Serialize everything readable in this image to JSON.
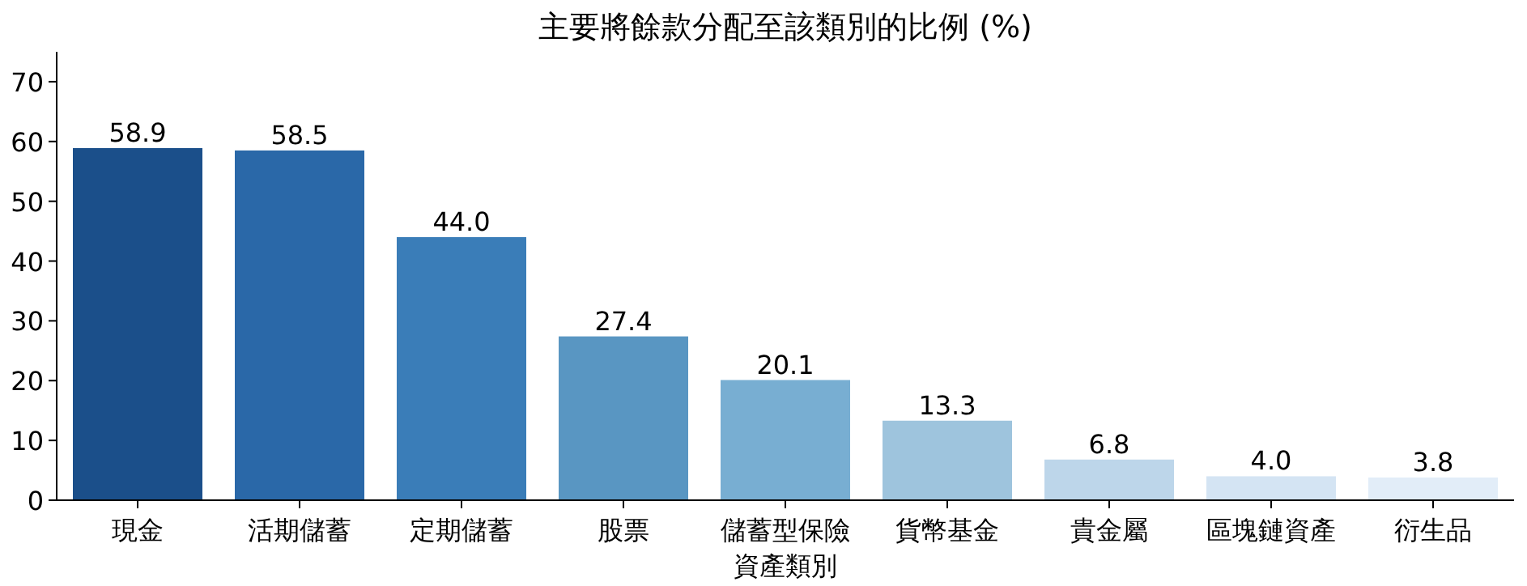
{
  "chart_data": {
    "type": "bar",
    "title": "主要將餘款分配至該類別的比例 (%)",
    "xlabel": "資產類別",
    "categories": [
      "現金",
      "活期儲蓄",
      "定期儲蓄",
      "股票",
      "儲蓄型保險",
      "貨幣基金",
      "貴金屬",
      "區塊鏈資產",
      "衍生品"
    ],
    "values": [
      58.9,
      58.5,
      44.0,
      27.4,
      20.1,
      13.3,
      6.8,
      4.0,
      3.8
    ],
    "value_labels": [
      "58.9",
      "58.5",
      "44.0",
      "27.4",
      "20.1",
      "13.3",
      "6.8",
      "4.0",
      "3.8"
    ],
    "colors": [
      "#1b4f8a",
      "#2a68a8",
      "#3a7db8",
      "#5996c2",
      "#78aed2",
      "#9ec4dd",
      "#bdd6ea",
      "#d4e4f3",
      "#e2edf8"
    ],
    "ylim": [
      0,
      75
    ],
    "yticks": [
      0,
      10,
      20,
      30,
      40,
      50,
      60,
      70
    ]
  }
}
